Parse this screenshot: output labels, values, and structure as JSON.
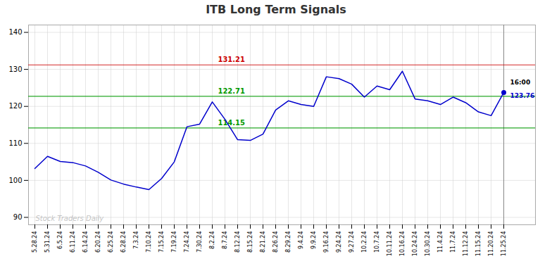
{
  "chart_data": {
    "type": "line",
    "title": "ITB Long Term Signals",
    "categories": [
      "5.28.24",
      "5.31.24",
      "6.5.24",
      "6.11.24",
      "6.14.24",
      "6.20.24",
      "6.25.24",
      "6.28.24",
      "7.3.24",
      "7.10.24",
      "7.15.24",
      "7.19.24",
      "7.24.24",
      "7.30.24",
      "8.2.24",
      "8.7.24",
      "8.12.24",
      "8.15.24",
      "8.21.24",
      "8.26.24",
      "8.29.24",
      "9.4.24",
      "9.9.24",
      "9.16.24",
      "9.24.24",
      "9.27.24",
      "10.2.24",
      "10.7.24",
      "10.11.24",
      "10.16.24",
      "10.24.24",
      "10.30.24",
      "11.4.24",
      "11.7.24",
      "11.12.24",
      "11.15.24",
      "11.20.24",
      "11.25.24"
    ],
    "values": [
      103.2,
      106.5,
      105.1,
      104.8,
      103.9,
      102.2,
      100.1,
      99.0,
      98.2,
      97.5,
      100.5,
      105.0,
      114.5,
      115.2,
      121.2,
      116.5,
      111.0,
      110.8,
      112.5,
      119.0,
      121.5,
      120.5,
      120.0,
      128.0,
      127.5,
      126.0,
      122.5,
      125.5,
      124.5,
      129.5,
      122.0,
      121.5,
      120.5,
      122.5,
      121.0,
      118.5,
      117.5,
      123.76
    ],
    "color": "#0000cc",
    "ylim": [
      88,
      142
    ],
    "yticks": [
      90,
      100,
      110,
      120,
      130,
      140
    ],
    "grid": true,
    "hlines": [
      {
        "value": 131.21,
        "label": "131.21",
        "color": "#cc0000"
      },
      {
        "value": 122.71,
        "label": "122.71",
        "color": "#009900"
      },
      {
        "value": 114.15,
        "label": "114.15",
        "color": "#009900"
      }
    ],
    "last_point": {
      "value": 123.76,
      "label": "123.76",
      "label_color": "#0000cc",
      "time": "16:00",
      "time_color": "#000000"
    },
    "watermark": "Stock Traders Daily"
  }
}
